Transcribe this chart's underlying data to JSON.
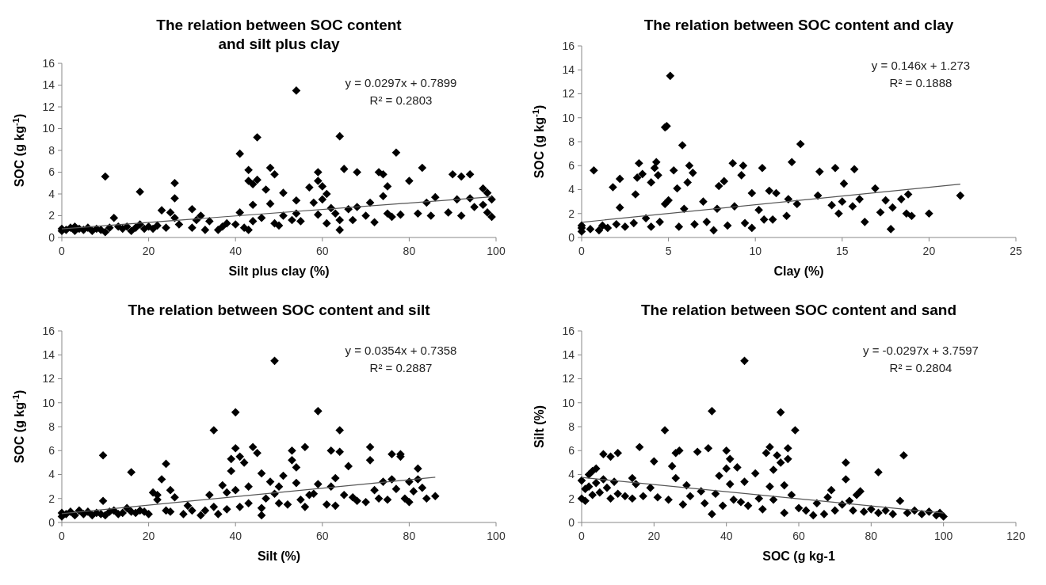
{
  "chart_data": [
    {
      "type": "scatter",
      "title": "The relation between SOC content and silt plus clay",
      "xlabel": "Silt plus clay (%)",
      "ylabel": "SOC (g kg$^{-1}$)",
      "xlim": [
        0,
        100
      ],
      "xticks": [
        0,
        20,
        40,
        60,
        80,
        100
      ],
      "ylim": [
        0,
        16
      ],
      "yticks": [
        0,
        2,
        4,
        6,
        8,
        10,
        12,
        14,
        16
      ],
      "grid": false,
      "marker": "diamond",
      "annotations": [
        "y = 0.0297x + 0.7899",
        "R² = 0.2803"
      ],
      "series": [
        {
          "color": "#000000",
          "x": [
            0,
            0,
            1,
            2,
            3,
            3,
            4,
            5,
            6,
            7,
            8,
            9,
            10,
            10,
            11,
            12,
            13,
            14,
            15,
            16,
            17,
            18,
            18,
            19,
            20,
            21,
            22,
            23,
            24,
            25,
            26,
            26,
            26,
            27,
            30,
            30,
            31,
            32,
            33,
            34,
            36,
            37,
            38,
            40,
            41,
            41,
            42,
            43,
            43,
            43,
            44,
            44,
            44,
            45,
            45,
            46,
            47,
            48,
            48,
            49,
            49,
            50,
            51,
            51,
            53,
            54,
            54,
            54,
            55,
            57,
            58,
            59,
            59,
            59,
            60,
            60,
            61,
            61,
            62,
            63,
            64,
            64,
            64,
            65,
            66,
            67,
            68,
            68,
            70,
            71,
            72,
            73,
            74,
            74,
            75,
            75,
            76,
            77,
            78,
            80,
            82,
            83,
            84,
            85,
            86,
            89,
            90,
            91,
            92,
            92,
            94,
            94,
            95,
            97,
            97,
            98,
            98,
            99,
            99
          ],
          "values": [
            0.6,
            0.8,
            0.7,
            0.9,
            0.6,
            1.0,
            0.8,
            0.7,
            0.9,
            0.6,
            0.8,
            0.7,
            0.5,
            5.6,
            0.9,
            1.8,
            1.0,
            0.8,
            1.0,
            0.6,
            0.9,
            4.2,
            1.2,
            0.8,
            1.0,
            0.8,
            1.1,
            2.5,
            0.9,
            2.3,
            5.0,
            3.6,
            1.8,
            1.2,
            0.9,
            2.6,
            1.6,
            2.0,
            0.7,
            1.5,
            0.7,
            1.0,
            1.3,
            1.2,
            7.7,
            2.3,
            0.9,
            5.2,
            6.2,
            0.7,
            4.9,
            3.0,
            1.5,
            9.2,
            5.3,
            1.8,
            4.4,
            6.4,
            3.1,
            5.8,
            1.3,
            1.1,
            4.1,
            2.0,
            1.6,
            13.5,
            3.4,
            2.2,
            1.5,
            4.6,
            3.2,
            6.0,
            5.2,
            2.1,
            4.7,
            3.5,
            1.3,
            4.0,
            2.7,
            2.2,
            9.3,
            0.7,
            1.6,
            6.3,
            2.6,
            1.6,
            6.0,
            2.8,
            2.0,
            3.2,
            1.4,
            6.0,
            5.8,
            3.8,
            4.7,
            2.2,
            1.9,
            7.8,
            2.1,
            5.2,
            2.2,
            6.4,
            3.2,
            2.0,
            3.7,
            2.3,
            5.8,
            3.5,
            5.6,
            2.0,
            5.8,
            3.6,
            2.8,
            4.5,
            3.0,
            4.1,
            2.3,
            3.5,
            1.9
          ]
        },
        {
          "type": "line",
          "marker": "none",
          "color": "#555555",
          "x": [
            0,
            99
          ],
          "values": [
            0.79,
            3.73
          ]
        }
      ]
    },
    {
      "type": "scatter",
      "title": "The relation between SOC content and clay",
      "xlabel": "Clay (%)",
      "ylabel": "SOC (g kg$^{-1}$)",
      "xlim": [
        0,
        25
      ],
      "xticks": [
        0,
        5,
        10,
        15,
        20,
        25
      ],
      "ylim": [
        0,
        16
      ],
      "yticks": [
        0,
        2,
        4,
        6,
        8,
        10,
        12,
        14,
        16
      ],
      "grid": false,
      "marker": "diamond",
      "annotations": [
        "y = 0.146x + 1.273",
        "R² = 0.1888"
      ],
      "series": [
        {
          "color": "#000000",
          "x": [
            0,
            0,
            0,
            0.5,
            0.7,
            1,
            1.2,
            1.5,
            1.8,
            2,
            2.2,
            2.2,
            2.5,
            3,
            3.1,
            3.2,
            3.3,
            3.5,
            3.7,
            4,
            4,
            4.2,
            4.3,
            4.4,
            4.5,
            4.8,
            4.9,
            4.8,
            5,
            5.1,
            5.3,
            5.5,
            5.6,
            5.8,
            5.9,
            6.1,
            6.2,
            6.4,
            6.5,
            7,
            7.2,
            7.6,
            7.8,
            7.9,
            8.2,
            8.4,
            8.7,
            8.8,
            9.2,
            9.3,
            9.4,
            9.8,
            9.8,
            10.2,
            10.4,
            10.5,
            10.8,
            11,
            11.2,
            11.8,
            11.9,
            12.1,
            12.4,
            12.6,
            13.6,
            13.7,
            14.4,
            14.6,
            14.8,
            15,
            15.1,
            15.6,
            15.7,
            16,
            16.3,
            16.9,
            17.2,
            17.5,
            17.8,
            17.9,
            18.4,
            18.7,
            18.8,
            19,
            20,
            21.8
          ],
          "values": [
            0.5,
            0.8,
            1.0,
            0.7,
            5.6,
            0.6,
            1.0,
            0.8,
            4.2,
            1.1,
            2.5,
            4.9,
            0.9,
            1.2,
            3.6,
            5.0,
            6.2,
            5.3,
            1.6,
            4.6,
            0.9,
            5.8,
            6.3,
            5.2,
            1.3,
            9.2,
            9.3,
            2.8,
            3.1,
            13.5,
            5.6,
            4.1,
            0.9,
            7.7,
            2.4,
            4.6,
            6.0,
            5.4,
            1.1,
            3.0,
            1.3,
            0.6,
            2.4,
            4.3,
            4.7,
            1.0,
            6.2,
            2.6,
            5.2,
            6.0,
            1.2,
            3.7,
            0.8,
            2.3,
            5.8,
            1.5,
            3.9,
            1.5,
            3.7,
            1.8,
            3.2,
            6.3,
            2.8,
            7.8,
            3.5,
            5.5,
            2.7,
            5.8,
            2.0,
            3.0,
            4.5,
            2.6,
            5.7,
            3.2,
            1.3,
            4.1,
            2.1,
            3.1,
            0.7,
            2.5,
            3.2,
            2.0,
            3.6,
            1.8,
            2.0,
            3.5
          ]
        },
        {
          "type": "line",
          "marker": "none",
          "color": "#555555",
          "x": [
            0,
            21.8
          ],
          "values": [
            1.27,
            4.46
          ]
        }
      ]
    },
    {
      "type": "scatter",
      "title": "The relation between SOC content and silt",
      "xlabel": "Silt (%)",
      "ylabel": "SOC (g kg$^{-1}$)",
      "xlim": [
        0,
        100
      ],
      "xticks": [
        0,
        20,
        40,
        60,
        80,
        100
      ],
      "ylim": [
        0,
        16
      ],
      "yticks": [
        0,
        2,
        4,
        6,
        8,
        10,
        12,
        14,
        16
      ],
      "grid": false,
      "marker": "diamond",
      "annotations": [
        "y = 0.0354x + 0.7358",
        "R² = 0.2887"
      ],
      "series": [
        {
          "color": "#000000",
          "x": [
            0,
            0,
            1,
            2,
            3,
            4,
            5,
            6,
            7,
            8,
            9,
            9.5,
            9.5,
            10,
            11,
            12,
            13,
            14,
            15,
            16,
            16,
            17,
            18,
            19,
            20,
            21,
            22,
            22,
            23,
            24,
            24,
            25,
            25,
            26,
            28,
            29,
            30,
            32,
            33,
            34,
            35,
            35,
            36,
            37,
            38,
            38,
            39,
            39,
            40,
            40,
            40,
            41,
            41,
            42,
            43,
            43,
            44,
            45,
            46,
            46,
            46,
            47,
            48,
            49,
            49,
            50,
            50,
            51,
            52,
            53,
            53,
            54,
            54,
            55,
            56,
            56,
            57,
            58,
            59,
            59,
            61,
            62,
            62,
            63,
            63,
            64,
            64,
            65,
            66,
            67,
            68,
            70,
            71,
            71,
            72,
            73,
            74,
            75,
            76,
            76,
            77,
            78,
            78,
            79,
            80,
            80,
            81,
            82,
            82,
            83,
            84,
            86
          ],
          "values": [
            0.5,
            0.8,
            0.7,
            0.9,
            0.6,
            1.0,
            0.7,
            0.9,
            0.6,
            0.8,
            0.7,
            5.6,
            1.8,
            0.6,
            0.9,
            1.0,
            0.7,
            0.8,
            1.2,
            4.2,
            0.9,
            0.8,
            1.0,
            0.9,
            0.7,
            2.5,
            1.9,
            2.3,
            3.6,
            4.9,
            1.0,
            2.7,
            0.9,
            2.1,
            0.7,
            1.4,
            1.0,
            0.6,
            1.0,
            2.3,
            7.7,
            1.3,
            0.7,
            3.1,
            1.1,
            2.5,
            4.3,
            5.3,
            9.2,
            6.2,
            2.7,
            5.5,
            1.3,
            5.0,
            1.6,
            3.0,
            6.3,
            5.8,
            4.1,
            1.2,
            0.6,
            2.0,
            3.4,
            13.5,
            2.4,
            3.0,
            1.6,
            3.9,
            1.5,
            6.0,
            5.2,
            4.6,
            3.3,
            1.9,
            6.3,
            1.3,
            2.3,
            2.4,
            9.3,
            3.2,
            1.5,
            6.0,
            3.0,
            3.7,
            1.4,
            5.9,
            7.7,
            2.3,
            4.7,
            2.1,
            1.8,
            1.7,
            5.2,
            6.3,
            2.7,
            2.0,
            3.4,
            1.9,
            5.7,
            3.6,
            2.8,
            5.7,
            5.5,
            2.0,
            3.4,
            1.7,
            2.6,
            4.5,
            3.6,
            2.9,
            2.0,
            2.2
          ]
        },
        {
          "type": "line",
          "marker": "none",
          "color": "#555555",
          "x": [
            0,
            86
          ],
          "values": [
            0.74,
            3.78
          ]
        }
      ]
    },
    {
      "type": "scatter",
      "title": "The relation between SOC content and sand",
      "xlabel": "SOC (g kg-1",
      "ylabel": "Silt (%)",
      "xlim": [
        0,
        120
      ],
      "xticks": [
        0,
        20,
        40,
        60,
        80,
        100,
        120
      ],
      "ylim": [
        0,
        16
      ],
      "yticks": [
        0,
        2,
        4,
        6,
        8,
        10,
        12,
        14,
        16
      ],
      "grid": false,
      "marker": "diamond",
      "annotations": [
        "y = -0.0297x + 3.7597",
        "R² = 0.2804"
      ],
      "series": [
        {
          "color": "#000000",
          "x": [
            0,
            0,
            1,
            1,
            2,
            2,
            3,
            3,
            4,
            4,
            5,
            6,
            6,
            7,
            8,
            8,
            9,
            10,
            10,
            12,
            14,
            14,
            15,
            16,
            17,
            19,
            20,
            21,
            23,
            24,
            25,
            26,
            26,
            27,
            28,
            29,
            30,
            32,
            33,
            34,
            35,
            36,
            36,
            37,
            38,
            39,
            40,
            40,
            41,
            41,
            42,
            43,
            44,
            45,
            45,
            46,
            48,
            49,
            50,
            51,
            52,
            52,
            53,
            53,
            54,
            55,
            55,
            56,
            56,
            57,
            57,
            58,
            59,
            60,
            62,
            64,
            65,
            67,
            68,
            69,
            70,
            72,
            73,
            73,
            74,
            75,
            76,
            77,
            78,
            80,
            82,
            82,
            84,
            86,
            88,
            89,
            90,
            92,
            94,
            96,
            98,
            99,
            100
          ],
          "values": [
            2.0,
            3.5,
            1.8,
            2.8,
            4.0,
            3.0,
            4.3,
            2.3,
            4.5,
            3.3,
            2.5,
            5.7,
            3.6,
            2.9,
            5.5,
            2.0,
            3.4,
            5.8,
            2.4,
            2.2,
            3.7,
            2.0,
            3.2,
            6.3,
            2.2,
            2.9,
            5.1,
            2.1,
            7.7,
            1.9,
            4.7,
            5.8,
            3.7,
            6.0,
            1.5,
            3.1,
            2.2,
            5.9,
            2.6,
            1.6,
            6.2,
            9.3,
            0.7,
            2.4,
            3.9,
            1.4,
            4.5,
            6.0,
            5.3,
            3.2,
            1.9,
            4.6,
            1.7,
            13.5,
            3.4,
            1.4,
            4.1,
            2.0,
            1.1,
            5.8,
            6.3,
            3.0,
            4.4,
            1.9,
            5.6,
            9.2,
            5.0,
            3.1,
            0.8,
            6.2,
            5.3,
            2.3,
            7.7,
            1.2,
            1.0,
            0.6,
            1.6,
            0.7,
            2.1,
            2.7,
            1.0,
            1.5,
            5.0,
            3.6,
            1.8,
            1.0,
            2.3,
            2.6,
            0.9,
            1.1,
            4.2,
            0.8,
            1.0,
            0.7,
            1.8,
            5.6,
            0.8,
            1.0,
            0.7,
            0.9,
            0.6,
            0.8,
            0.5
          ]
        },
        {
          "type": "line",
          "marker": "none",
          "color": "#555555",
          "x": [
            0,
            100
          ],
          "values": [
            3.76,
            0.79
          ]
        }
      ]
    }
  ]
}
